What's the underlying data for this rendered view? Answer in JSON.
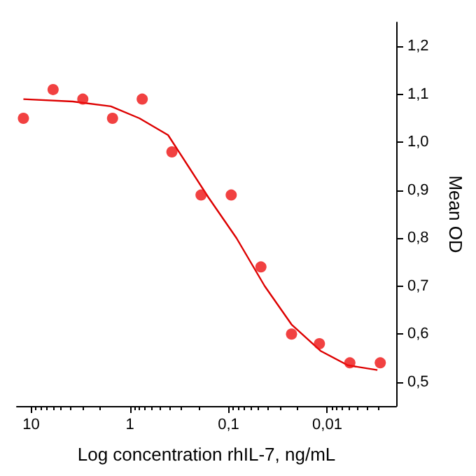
{
  "chart_data": {
    "type": "scatter",
    "xlabel": "Log concentration rhIL-7, ng/mL",
    "ylabel": "Mean OD",
    "log": "x",
    "xlim": [
      14,
      0.002
    ],
    "ylim": [
      0.45,
      1.25
    ],
    "xticks": [
      {
        "value": 10,
        "label": "10"
      },
      {
        "value": 1,
        "label": "1"
      },
      {
        "value": 0.1,
        "label": "0,1"
      },
      {
        "value": 0.01,
        "label": "0,01"
      }
    ],
    "yticks": [
      {
        "value": 0.5,
        "label": "0,5"
      },
      {
        "value": 0.6,
        "label": "0,6"
      },
      {
        "value": 0.7,
        "label": "0,7"
      },
      {
        "value": 0.8,
        "label": "0,8"
      },
      {
        "value": 0.9,
        "label": "0,9"
      },
      {
        "value": 1.0,
        "label": "1,0"
      },
      {
        "value": 1.1,
        "label": "1,1"
      },
      {
        "value": 1.2,
        "label": "1,2"
      }
    ],
    "grid": false,
    "series": [
      {
        "marker": "circle",
        "color": "#ee1111",
        "x": [
          12,
          6,
          3,
          1.5,
          0.75,
          0.375,
          0.19,
          0.094,
          0.047,
          0.023,
          0.012,
          0.0059,
          0.0029
        ],
        "values": [
          1.05,
          1.11,
          1.09,
          1.05,
          1.09,
          0.98,
          0.89,
          0.89,
          0.74,
          0.6,
          0.58,
          0.54,
          0.54
        ]
      },
      {
        "type": "line",
        "marker": "none",
        "line_style": "solid",
        "color": "#dd0000",
        "x": [
          12,
          3.8,
          1.56,
          0.8,
          0.41,
          0.256,
          0.16,
          0.083,
          0.043,
          0.023,
          0.0117,
          0.0062,
          0.0031
        ],
        "values": [
          1.09,
          1.085,
          1.075,
          1.05,
          1.015,
          0.95,
          0.885,
          0.8,
          0.7,
          0.62,
          0.565,
          0.535,
          0.525
        ]
      }
    ]
  }
}
